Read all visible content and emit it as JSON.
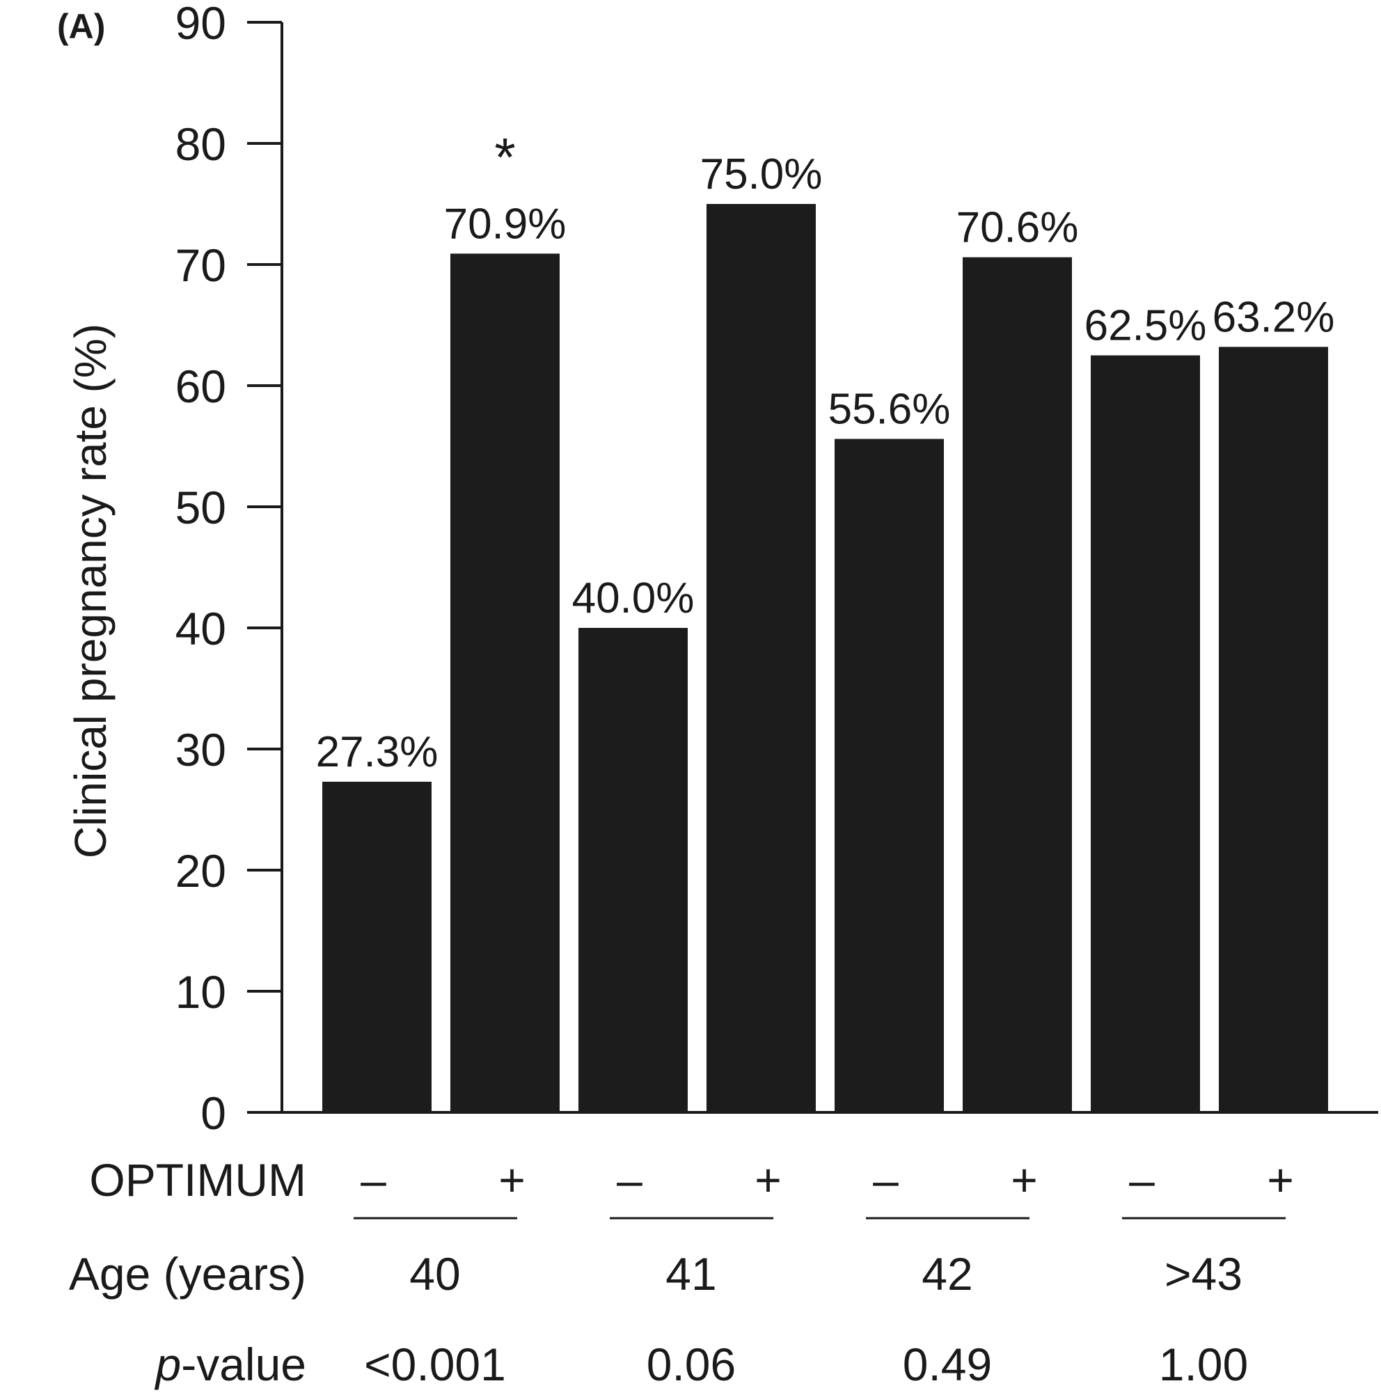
{
  "panel_label": "(A)",
  "chart_data": {
    "type": "bar",
    "title": "",
    "xlabel": "",
    "ylabel": "Clinical pregnancy rate (%)",
    "ylim": [
      0,
      90
    ],
    "yticks": [
      0,
      10,
      20,
      30,
      40,
      50,
      60,
      70,
      80,
      90
    ],
    "grid": false,
    "bar_color": "#1c1c1c",
    "optimum_row_label": "OPTIMUM",
    "age_row_label": "Age (years)",
    "pvalue_row_label_italic": "p",
    "pvalue_row_label_rest": "-value",
    "groups": [
      {
        "age": "40",
        "p_value": "<0.001",
        "bars": [
          {
            "optimum": "–",
            "value": 27.3,
            "label": "27.3%"
          },
          {
            "optimum": "+",
            "value": 70.9,
            "label": "70.9%",
            "annotation": "*"
          }
        ]
      },
      {
        "age": "41",
        "p_value": "0.06",
        "bars": [
          {
            "optimum": "–",
            "value": 40.0,
            "label": "40.0%"
          },
          {
            "optimum": "+",
            "value": 75.0,
            "label": "75.0%"
          }
        ]
      },
      {
        "age": "42",
        "p_value": "0.49",
        "bars": [
          {
            "optimum": "–",
            "value": 55.6,
            "label": "55.6%"
          },
          {
            "optimum": "+",
            "value": 70.6,
            "label": "70.6%"
          }
        ]
      },
      {
        "age": ">43",
        "p_value": "1.00",
        "bars": [
          {
            "optimum": "–",
            "value": 62.5,
            "label": "62.5%"
          },
          {
            "optimum": "+",
            "value": 63.2,
            "label": "63.2%"
          }
        ]
      }
    ]
  }
}
